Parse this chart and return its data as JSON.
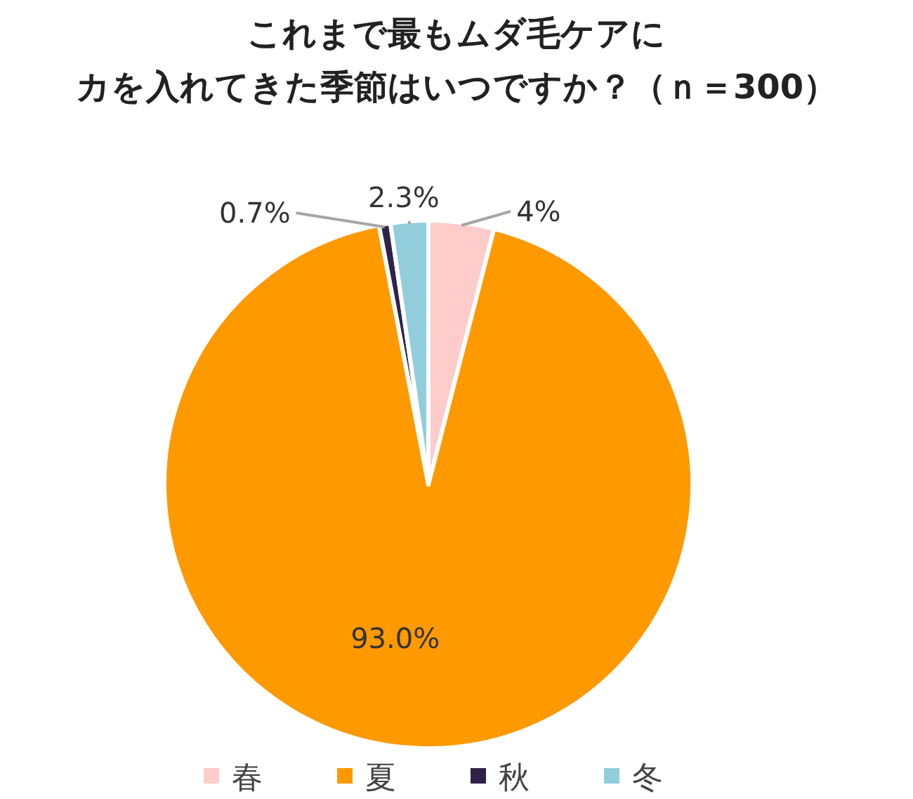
{
  "chart_data": {
    "type": "pie",
    "title": "これまで最もムダ毛ケアにカを入れてきた季節はいつですか？（ｎ＝300）",
    "categories": [
      "春",
      "夏",
      "秋",
      "冬"
    ],
    "values": [
      4,
      93.0,
      0.7,
      2.3
    ],
    "value_labels": [
      "4%",
      "93.0%",
      "0.7%",
      "2.3%"
    ],
    "colors": [
      "#ffcccc",
      "#ff9900",
      "#2e2348",
      "#92cddc"
    ],
    "legend": "bottom"
  }
}
